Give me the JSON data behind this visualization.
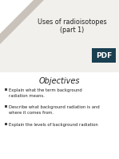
{
  "title_line1": "Uses of radioisotopes",
  "title_line2": "(part 1)",
  "section_header": "Objectives",
  "bullets": [
    "Explain what the term background\nradiation means.",
    "Describe what background radiation is and\nwhere it comes from.",
    "Explain the levels of background radiation"
  ],
  "bg_color": "#f2f0ec",
  "title_area_color": "#f2f0ec",
  "content_bg": "#ffffff",
  "triangle_outer": "#c8c2ba",
  "triangle_inner": "#ffffff",
  "pdf_badge_color": "#1a3f50",
  "text_color": "#222222",
  "bullet_color": "#444444"
}
